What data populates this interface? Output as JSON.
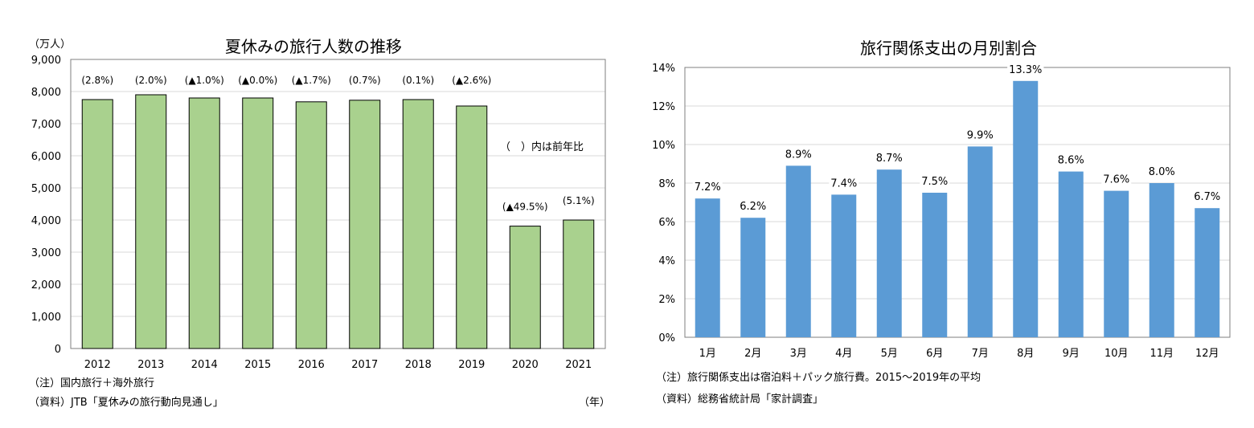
{
  "left": {
    "title": "夏休みの旅行人数の推移",
    "unit": "（万人）",
    "legend_note": "（　）内は前年比",
    "x_unit": "（年）",
    "notes": [
      "（注）国内旅行＋海外旅行",
      "（資料）JTB「夏休みの旅行動向見通し」"
    ],
    "colors": {
      "bar": "#a9d18e",
      "bar_border": "#000000",
      "grid": "#d9d9d9"
    },
    "chart_data": {
      "type": "bar",
      "categories": [
        "2012",
        "2013",
        "2014",
        "2015",
        "2016",
        "2017",
        "2018",
        "2019",
        "2020",
        "2021"
      ],
      "values": [
        7750,
        7900,
        7800,
        7800,
        7680,
        7730,
        7750,
        7550,
        3810,
        4000
      ],
      "data_labels": [
        "(2.8%)",
        "(2.0%)",
        "(▲1.0%)",
        "(▲0.0%)",
        "(▲1.7%)",
        "(0.7%)",
        "(0.1%)",
        "(▲2.6%)",
        "(▲49.5%)",
        "(5.1%)"
      ],
      "ylim": [
        0,
        9000
      ],
      "yticks": [
        "0",
        "1,000",
        "2,000",
        "3,000",
        "4,000",
        "5,000",
        "6,000",
        "7,000",
        "8,000",
        "9,000"
      ],
      "grid": true
    }
  },
  "right": {
    "title": "旅行関係支出の月別割合",
    "notes": [
      "（注）旅行関係支出は宿泊料＋パック旅行費。2015～2019年の平均",
      "（資料）総務省統計局「家計調査」"
    ],
    "colors": {
      "bar": "#5b9bd5",
      "grid": "#d9d9d9"
    },
    "chart_data": {
      "type": "bar",
      "categories": [
        "1月",
        "2月",
        "3月",
        "4月",
        "5月",
        "6月",
        "7月",
        "8月",
        "9月",
        "10月",
        "11月",
        "12月"
      ],
      "values": [
        7.2,
        6.2,
        8.9,
        7.4,
        8.7,
        7.5,
        9.9,
        13.3,
        8.6,
        7.6,
        8.0,
        6.7
      ],
      "data_labels": [
        "7.2%",
        "6.2%",
        "8.9%",
        "7.4%",
        "8.7%",
        "7.5%",
        "9.9%",
        "13.3%",
        "8.6%",
        "7.6%",
        "8.0%",
        "6.7%"
      ],
      "ylim": [
        0,
        14
      ],
      "yticks": [
        "0%",
        "2%",
        "4%",
        "6%",
        "8%",
        "10%",
        "12%",
        "14%"
      ],
      "grid": true
    }
  }
}
